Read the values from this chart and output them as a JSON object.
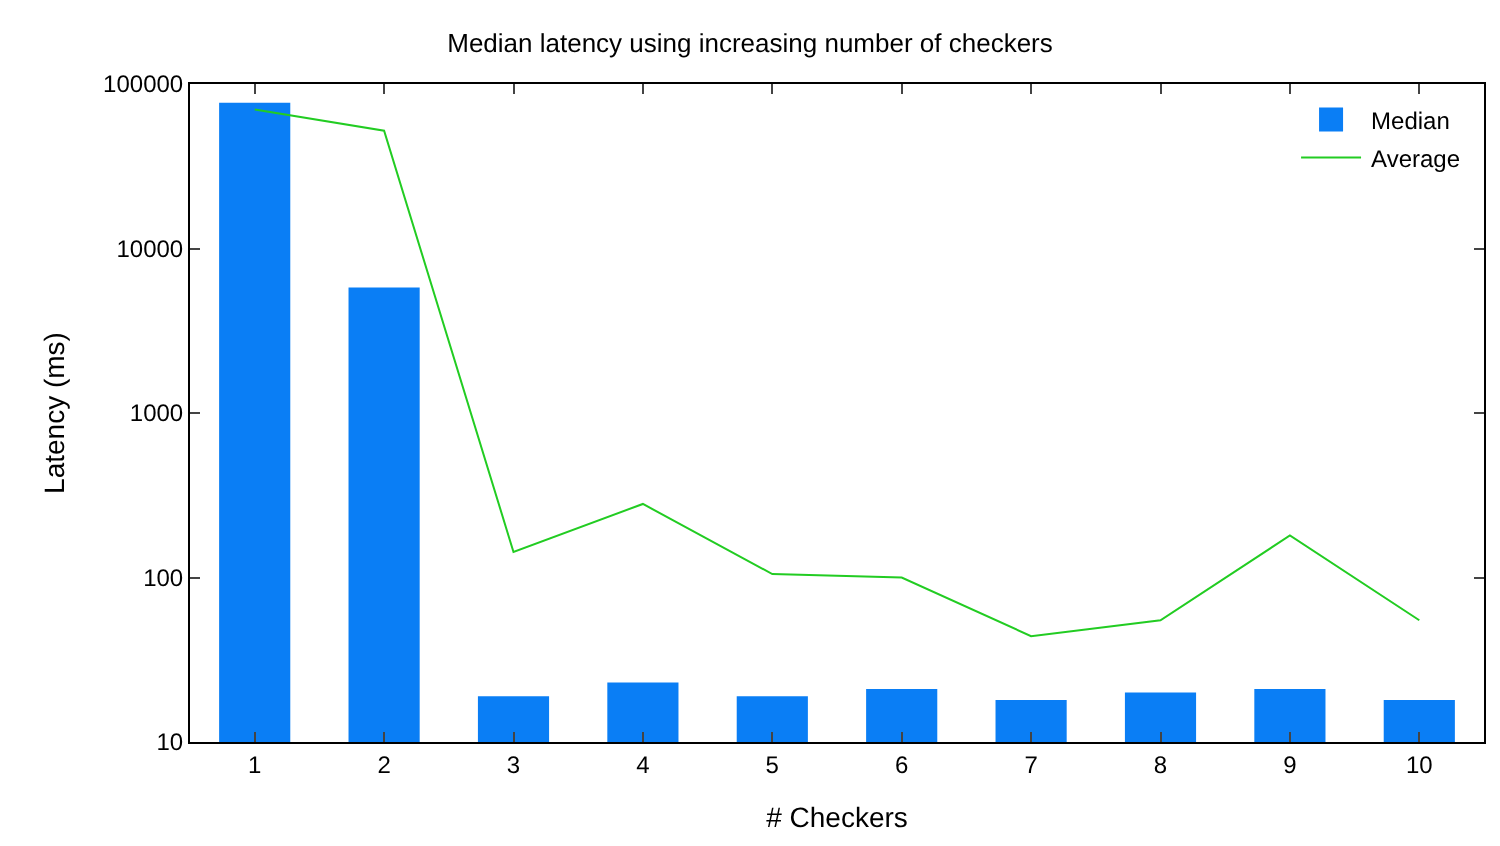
{
  "chart_data": {
    "type": "bar",
    "title": "Median latency using increasing number of checkers",
    "xlabel": "# Checkers",
    "ylabel": "Latency (ms)",
    "categories": [
      "1",
      "2",
      "3",
      "4",
      "5",
      "6",
      "7",
      "8",
      "9",
      "10"
    ],
    "series": [
      {
        "name": "Median",
        "color": "#0a7ef5",
        "values": [
          77000,
          5800,
          19,
          23,
          19,
          21,
          18,
          20,
          21,
          18
        ]
      },
      {
        "name": "Average",
        "type": "line",
        "color": "#22cc22",
        "values": [
          70000,
          52000,
          143,
          280,
          105,
          100,
          44,
          55,
          180,
          55
        ]
      }
    ],
    "log": "y",
    "ylim": [
      10,
      100000
    ],
    "yticks": [
      10,
      100,
      1000,
      10000,
      100000
    ],
    "grid": false,
    "legend": "top right",
    "marker": "none"
  }
}
